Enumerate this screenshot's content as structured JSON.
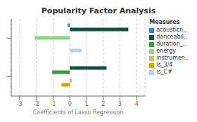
{
  "chart_data": {
    "type": "bar",
    "orientation": "horizontal",
    "title": "Popularity Factor Analysis",
    "xlabel": "Coefficients of Lasso Regression",
    "legend_title": "Measures",
    "categories": [
      null,
      null
    ],
    "series": [
      {
        "name": "acousticn..",
        "color": "#3a87b8",
        "values": [
          -0.13,
          null
        ]
      },
      {
        "name": "danceabil..",
        "color": "#0d5240",
        "values": [
          3.5,
          2.2
        ]
      },
      {
        "name": "duration_..",
        "color": "#3a9c3a",
        "values": [
          null,
          -1.05
        ]
      },
      {
        "name": "energy",
        "color": "#88d888",
        "values": [
          -2.1,
          null
        ]
      },
      {
        "name": "instrumen..",
        "color": "#d4b483",
        "values": [
          null,
          0.13
        ]
      },
      {
        "name": "is_3/4",
        "color": "#d4a800",
        "values": [
          null,
          -0.5
        ]
      },
      {
        "name": "is_C#",
        "color": "#aed4f0",
        "values": [
          0.7,
          null
        ]
      }
    ],
    "xlim": [
      -3.5,
      4.5
    ],
    "xticks": [
      -3,
      -2,
      -1,
      0,
      1,
      2,
      3,
      4
    ],
    "grid": true,
    "legend": "upper right"
  }
}
